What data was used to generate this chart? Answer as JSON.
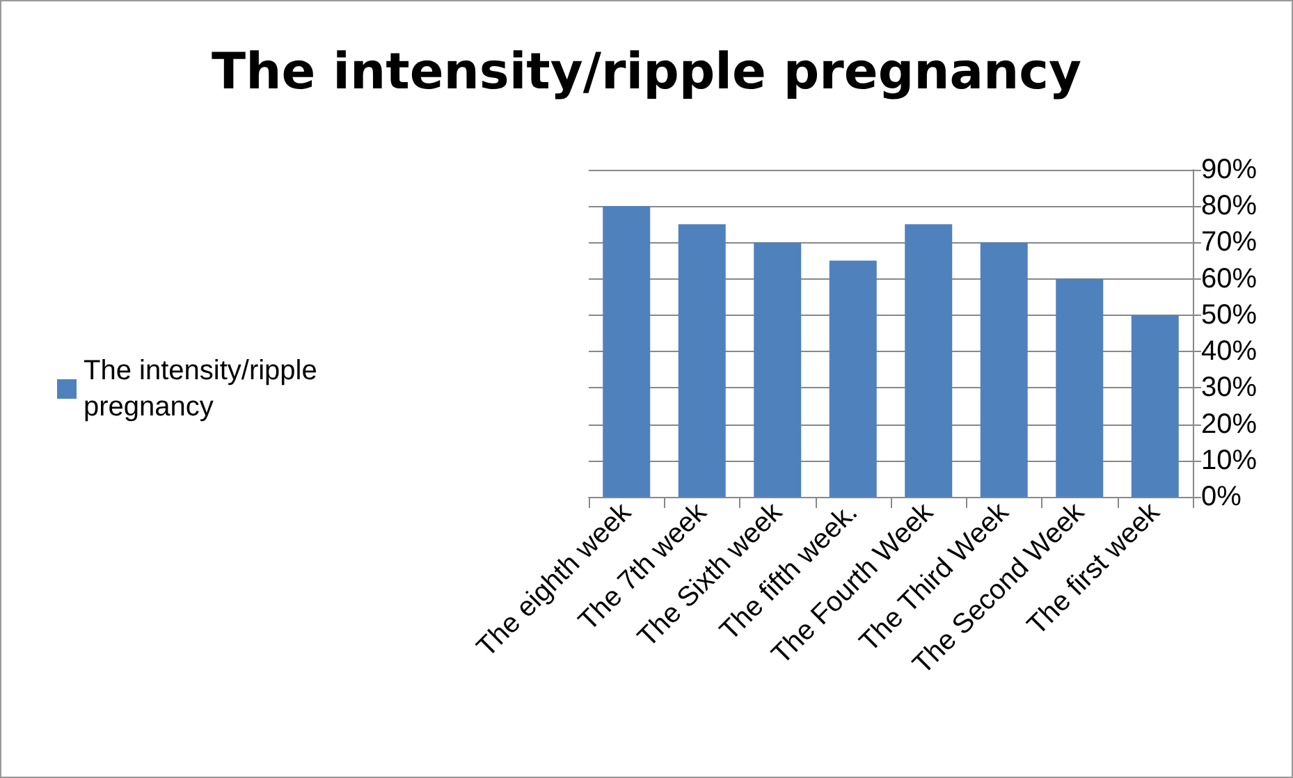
{
  "chart_data": {
    "type": "bar",
    "title": "The intensity/ripple pregnancy",
    "categories": [
      "The eighth week",
      "The 7th week",
      "The Sixth week",
      "The fifth week.",
      "The Fourth Week",
      "The Third Week",
      "The Second Week",
      "The first week"
    ],
    "series": [
      {
        "name": "The intensity/ripple pregnancy",
        "color": "#4f81bd",
        "values": [
          80,
          75,
          70,
          65,
          75,
          70,
          60,
          50
        ]
      }
    ],
    "ylim": [
      0,
      90
    ],
    "yticks": [
      {
        "value": 0,
        "label": "0%"
      },
      {
        "value": 10,
        "label": "10%"
      },
      {
        "value": 20,
        "label": "20%"
      },
      {
        "value": 30,
        "label": "30%"
      },
      {
        "value": 40,
        "label": "40%"
      },
      {
        "value": 50,
        "label": "50%"
      },
      {
        "value": 60,
        "label": "60%"
      },
      {
        "value": 70,
        "label": "70%"
      },
      {
        "value": 80,
        "label": "80%"
      },
      {
        "value": 90,
        "label": "90%"
      }
    ],
    "grid": "y",
    "legend": "left"
  }
}
